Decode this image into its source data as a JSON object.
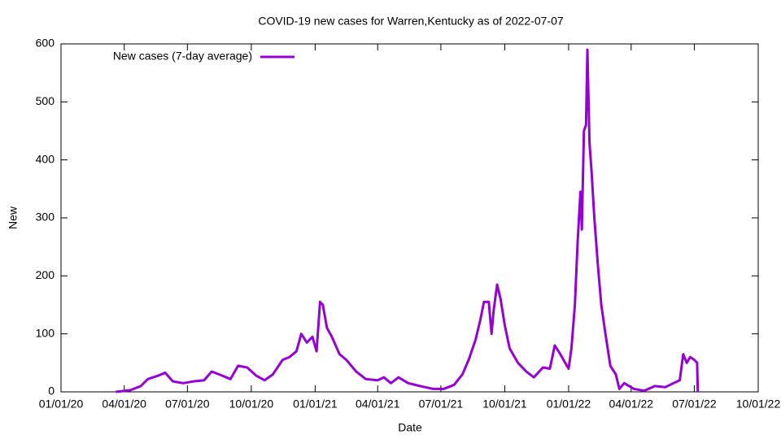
{
  "chart_data": {
    "type": "line",
    "title": "COVID-19 new cases for Warren,Kentucky as of 2022-07-07",
    "x_label": "Date",
    "y_label": "New",
    "x": [
      "2020-03-20",
      "2020-04-10",
      "2020-04-25",
      "2020-05-05",
      "2020-05-20",
      "2020-05-30",
      "2020-06-10",
      "2020-06-25",
      "2020-07-10",
      "2020-07-25",
      "2020-08-05",
      "2020-08-20",
      "2020-09-01",
      "2020-09-12",
      "2020-09-25",
      "2020-10-08",
      "2020-10-20",
      "2020-11-01",
      "2020-11-15",
      "2020-11-25",
      "2020-12-05",
      "2020-12-12",
      "2020-12-20",
      "2020-12-28",
      "2021-01-03",
      "2021-01-08",
      "2021-01-12",
      "2021-01-18",
      "2021-01-25",
      "2021-02-05",
      "2021-02-15",
      "2021-03-01",
      "2021-03-15",
      "2021-04-01",
      "2021-04-10",
      "2021-04-20",
      "2021-05-01",
      "2021-05-15",
      "2021-06-01",
      "2021-06-20",
      "2021-07-05",
      "2021-07-20",
      "2021-08-01",
      "2021-08-10",
      "2021-08-20",
      "2021-08-27",
      "2021-09-01",
      "2021-09-08",
      "2021-09-12",
      "2021-09-15",
      "2021-09-20",
      "2021-09-25",
      "2021-10-01",
      "2021-10-08",
      "2021-10-20",
      "2021-11-01",
      "2021-11-12",
      "2021-11-25",
      "2021-12-05",
      "2021-12-12",
      "2021-12-20",
      "2021-12-27",
      "2022-01-01",
      "2022-01-05",
      "2022-01-10",
      "2022-01-14",
      "2022-01-18",
      "2022-01-20",
      "2022-01-23",
      "2022-01-26",
      "2022-01-28",
      "2022-01-31",
      "2022-02-03",
      "2022-02-07",
      "2022-02-12",
      "2022-02-17",
      "2022-02-23",
      "2022-03-02",
      "2022-03-10",
      "2022-03-15",
      "2022-03-22",
      "2022-04-05",
      "2022-04-20",
      "2022-05-05",
      "2022-05-20",
      "2022-06-01",
      "2022-06-10",
      "2022-06-15",
      "2022-06-20",
      "2022-06-25",
      "2022-07-01",
      "2022-07-05",
      "2022-07-06"
    ],
    "series": [
      {
        "name": "New cases (7-day average)",
        "color": "#9400d3",
        "values": [
          0,
          3,
          10,
          22,
          28,
          33,
          18,
          15,
          18,
          20,
          35,
          28,
          22,
          45,
          42,
          28,
          20,
          30,
          55,
          60,
          70,
          100,
          85,
          95,
          70,
          155,
          150,
          110,
          95,
          65,
          55,
          35,
          22,
          20,
          25,
          15,
          25,
          15,
          10,
          5,
          5,
          12,
          30,
          55,
          90,
          125,
          155,
          155,
          100,
          140,
          185,
          160,
          115,
          75,
          50,
          35,
          25,
          42,
          40,
          80,
          65,
          50,
          40,
          75,
          150,
          260,
          345,
          280,
          450,
          460,
          590,
          430,
          380,
          300,
          220,
          150,
          100,
          45,
          30,
          5,
          15,
          5,
          2,
          10,
          8,
          15,
          20,
          65,
          50,
          60,
          55,
          50,
          0
        ]
      }
    ],
    "xlim": [
      "2020-01-01",
      "2022-10-01"
    ],
    "xticks": [
      {
        "value": "2020-01-01",
        "label": "01/01/20"
      },
      {
        "value": "2020-04-01",
        "label": "04/01/20"
      },
      {
        "value": "2020-07-01",
        "label": "07/01/20"
      },
      {
        "value": "2020-10-01",
        "label": "10/01/20"
      },
      {
        "value": "2021-01-01",
        "label": "01/01/21"
      },
      {
        "value": "2021-04-01",
        "label": "04/01/21"
      },
      {
        "value": "2021-07-01",
        "label": "07/01/21"
      },
      {
        "value": "2021-10-01",
        "label": "10/01/21"
      },
      {
        "value": "2022-01-01",
        "label": "01/01/22"
      },
      {
        "value": "2022-04-01",
        "label": "04/01/22"
      },
      {
        "value": "2022-07-01",
        "label": "07/01/22"
      },
      {
        "value": "2022-10-01",
        "label": "10/01/22"
      }
    ],
    "ylim": [
      0,
      600
    ],
    "yticks": [
      0,
      100,
      200,
      300,
      400,
      500,
      600
    ],
    "legend": "top-left",
    "grid": false
  }
}
